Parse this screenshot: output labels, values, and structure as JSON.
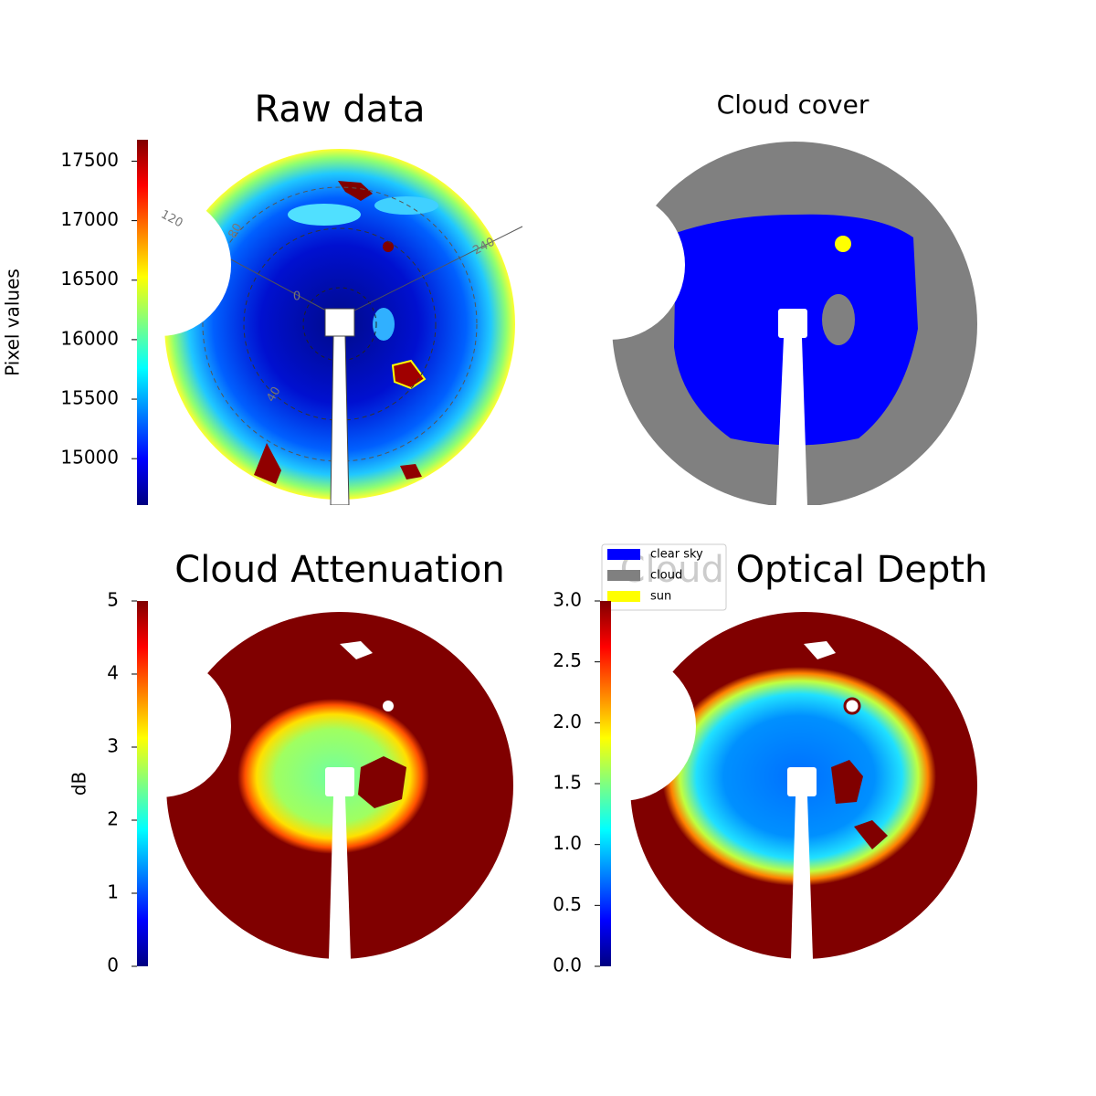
{
  "panels": [
    {
      "title": "Raw data",
      "colorbar": {
        "label": "Pixel values",
        "lim": [
          14610,
          17680
        ],
        "ticks": [
          15000,
          15500,
          16000,
          16500,
          17000,
          17500
        ]
      },
      "polar_labels": [
        "120",
        "80",
        "240",
        "0",
        "40"
      ]
    },
    {
      "title": "Cloud cover",
      "legend": [
        {
          "name": "clear sky",
          "color": "#0000ff"
        },
        {
          "name": "cloud",
          "color": "#808080"
        },
        {
          "name": "sun",
          "color": "#ffff00"
        }
      ]
    },
    {
      "title": "Cloud Attenuation",
      "colorbar": {
        "label": "dB",
        "lim": [
          0,
          5
        ],
        "ticks": [
          0,
          1,
          2,
          3,
          4,
          5
        ]
      }
    },
    {
      "title": "Cloud Optical Depth",
      "colorbar": {
        "lim": [
          0,
          3
        ],
        "ticks": [
          {
            "value": 0,
            "label": "0.0"
          },
          {
            "value": 0.5,
            "label": "0.5"
          },
          {
            "value": 1,
            "label": "1.0"
          },
          {
            "value": 1.5,
            "label": "1.5"
          },
          {
            "value": 2,
            "label": "2.0"
          },
          {
            "value": 2.5,
            "label": "2.5"
          },
          {
            "value": 3,
            "label": "3.0"
          }
        ]
      }
    }
  ]
}
